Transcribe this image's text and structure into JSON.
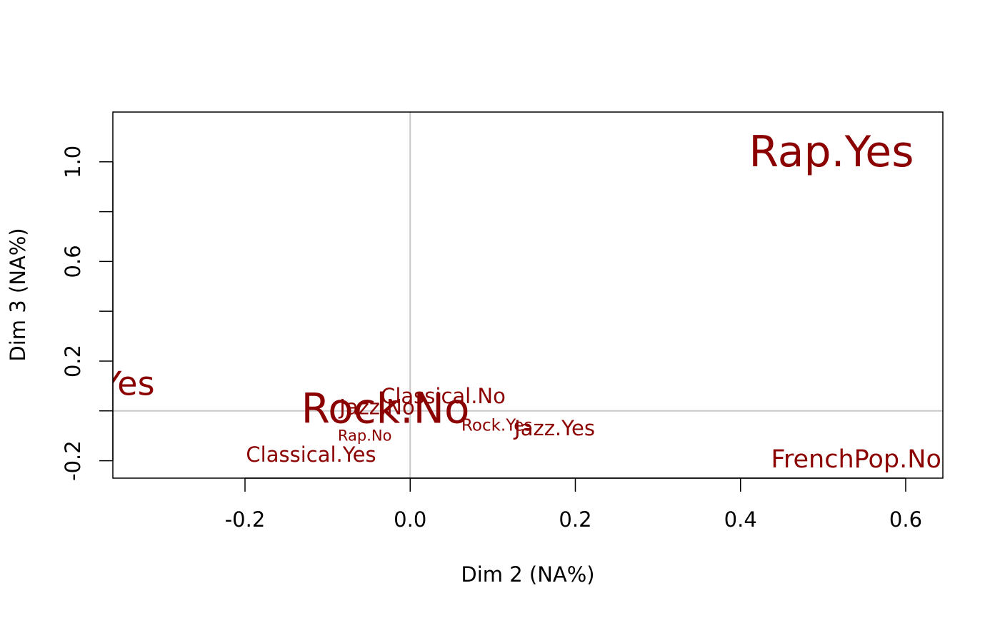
{
  "chart_data": {
    "type": "scatter",
    "xlabel": "Dim 2 (NA%)",
    "ylabel": "Dim 3 (NA%)",
    "xlim": [
      -0.36,
      0.645
    ],
    "ylim": [
      -0.27,
      1.2
    ],
    "x_ticks": [
      -0.2,
      0.0,
      0.2,
      0.4,
      0.6
    ],
    "x_tick_labels": [
      "-0.2",
      "0.0",
      "0.2",
      "0.4",
      "0.6"
    ],
    "y_ticks": [
      -0.2,
      0.0,
      0.2,
      0.4,
      0.6,
      0.8,
      1.0
    ],
    "y_tick_labels": [
      "-0.2",
      "",
      "0.2",
      "",
      "0.6",
      "",
      "1.0"
    ],
    "reference_lines": {
      "x": 0,
      "y": 0
    },
    "grid": false,
    "label_color": "#8b0000",
    "reference_line_color": "#c8c8c8",
    "points": [
      {
        "label": "Rap.Yes",
        "x": 0.51,
        "y": 1.04,
        "size": 3.0
      },
      {
        "label": "FrenchPop.Yes",
        "x": -0.45,
        "y": 0.11,
        "size": 2.3
      },
      {
        "label": "Rock.No",
        "x": -0.03,
        "y": 0.01,
        "size": 2.9
      },
      {
        "label": "Classical.No",
        "x": 0.04,
        "y": 0.06,
        "size": 1.45
      },
      {
        "label": "Jazz.No",
        "x": -0.04,
        "y": 0.015,
        "size": 1.45
      },
      {
        "label": "Rap.No",
        "x": -0.055,
        "y": -0.1,
        "size": 1.05
      },
      {
        "label": "Rock.Yes",
        "x": 0.105,
        "y": -0.06,
        "size": 1.15
      },
      {
        "label": "Jazz.Yes",
        "x": 0.175,
        "y": -0.07,
        "size": 1.45
      },
      {
        "label": "Classical.Yes",
        "x": -0.12,
        "y": -0.175,
        "size": 1.45
      },
      {
        "label": "FrenchPop.No",
        "x": 0.54,
        "y": -0.195,
        "size": 1.75
      }
    ]
  }
}
